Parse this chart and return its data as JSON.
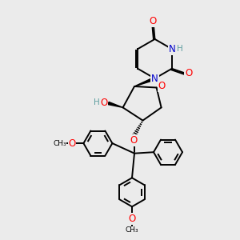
{
  "background_color": "#ebebeb",
  "atom_colors": {
    "O": "#ff0000",
    "N": "#0000cd",
    "C": "#000000",
    "H": "#5f9ea0"
  },
  "bond_lw": 1.4,
  "font_size_atom": 8.5,
  "font_size_h": 7.5
}
